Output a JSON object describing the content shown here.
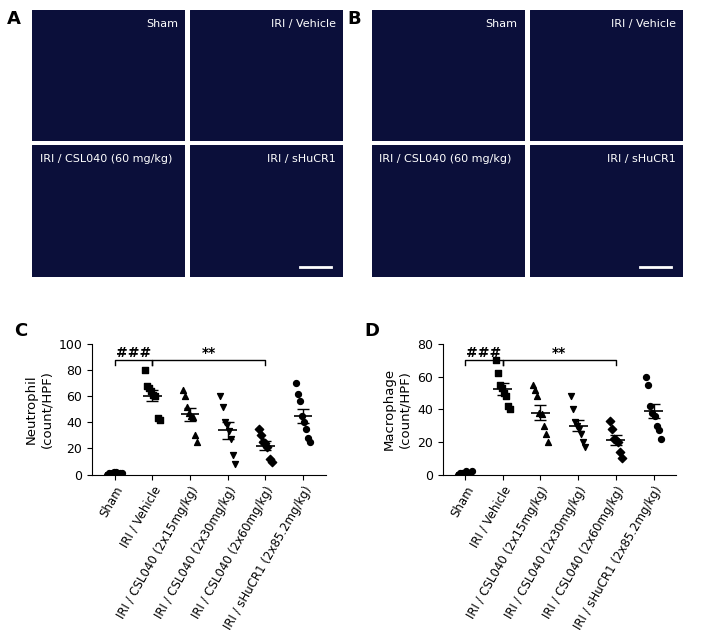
{
  "images": [
    {
      "panel": "A",
      "tiles": [
        "Sham",
        "IRI / Vehicle",
        "IRI / CSL040 (60 mg/kg)",
        "IRI / sHuCR1"
      ]
    },
    {
      "panel": "B",
      "tiles": [
        "Sham",
        "IRI / Vehicle",
        "IRI / CSL040 (60 mg/kg)",
        "IRI / sHuCR1"
      ]
    }
  ],
  "chart_data": [
    {
      "panel": "C",
      "type": "scatter",
      "y_label": "Neutrophil\n(count/HPF)",
      "categories": [
        "Sham",
        "IRI / Vehicle",
        "IRI / CSL040 (2x15mg/kg)",
        "IRI / CSL040 (2x30mg/kg)",
        "IRI / CSL040 (2x60mg/kg)",
        "IRI / sHuCR1 (2x85.2mg/kg)"
      ],
      "groups": [
        {
          "values": [
            0,
            1,
            1,
            2,
            2,
            0,
            1,
            1
          ],
          "mean": 1,
          "sem": 0.3,
          "marker": "circle",
          "color": "#000000"
        },
        {
          "values": [
            80,
            68,
            66,
            64,
            61,
            60,
            43,
            42
          ],
          "mean": 60.5,
          "sem": 4.5,
          "marker": "square",
          "color": "#000000"
        },
        {
          "values": [
            65,
            60,
            52,
            47,
            45,
            44,
            30,
            25
          ],
          "mean": 46,
          "sem": 4.8,
          "marker": "triangle_up",
          "color": "#000000"
        },
        {
          "values": [
            60,
            52,
            40,
            38,
            33,
            27,
            15,
            8
          ],
          "mean": 34,
          "sem": 6.5,
          "marker": "triangle_down",
          "color": "#000000"
        },
        {
          "values": [
            35,
            30,
            25,
            24,
            21,
            12,
            10
          ],
          "mean": 22,
          "sem": 3.5,
          "marker": "diamond",
          "color": "#000000"
        },
        {
          "values": [
            70,
            62,
            56,
            45,
            40,
            35,
            28,
            25
          ],
          "mean": 45,
          "sem": 5.5,
          "marker": "circle",
          "color": "#000000"
        }
      ],
      "ylim": [
        0,
        100
      ],
      "yticks": [
        0,
        20,
        40,
        60,
        80,
        100
      ],
      "annotations": [
        {
          "text": "###",
          "from": "Sham",
          "to": "IRI / Vehicle"
        },
        {
          "text": "**",
          "from": "IRI / Vehicle",
          "to": "IRI / CSL040 (2x60mg/kg)"
        }
      ]
    },
    {
      "panel": "D",
      "type": "scatter",
      "y_label": "Macrophage\n(count/HPF)",
      "categories": [
        "Sham",
        "IRI / Vehicle",
        "IRI / CSL040 (2x15mg/kg)",
        "IRI / CSL040 (2x30mg/kg)",
        "IRI / CSL040 (2x60mg/kg)",
        "IRI / sHuCR1 (2x85.2mg/kg)"
      ],
      "groups": [
        {
          "values": [
            0,
            1,
            1,
            1,
            2,
            0,
            1,
            2
          ],
          "mean": 1,
          "sem": 0.3,
          "marker": "circle",
          "color": "#000000"
        },
        {
          "values": [
            70,
            62,
            55,
            53,
            50,
            48,
            42,
            40
          ],
          "mean": 52.5,
          "sem": 3.5,
          "marker": "square",
          "color": "#000000"
        },
        {
          "values": [
            55,
            52,
            48,
            38,
            37,
            30,
            25,
            20
          ],
          "mean": 38,
          "sem": 4.5,
          "marker": "triangle_up",
          "color": "#000000"
        },
        {
          "values": [
            48,
            40,
            32,
            30,
            28,
            25,
            20,
            17
          ],
          "mean": 30,
          "sem": 3.5,
          "marker": "triangle_down",
          "color": "#000000"
        },
        {
          "values": [
            33,
            28,
            22,
            21,
            20,
            14,
            10
          ],
          "mean": 21,
          "sem": 3,
          "marker": "diamond",
          "color": "#000000"
        },
        {
          "values": [
            60,
            55,
            42,
            38,
            36,
            30,
            27,
            22
          ],
          "mean": 38.75,
          "sem": 4.2,
          "marker": "circle",
          "color": "#000000"
        }
      ],
      "ylim": [
        0,
        80
      ],
      "yticks": [
        0,
        20,
        40,
        60,
        80
      ],
      "annotations": [
        {
          "text": "###",
          "from": "Sham",
          "to": "IRI / Vehicle"
        },
        {
          "text": "**",
          "from": "IRI / Vehicle",
          "to": "IRI / CSL040 (2x60mg/kg)"
        }
      ]
    }
  ]
}
